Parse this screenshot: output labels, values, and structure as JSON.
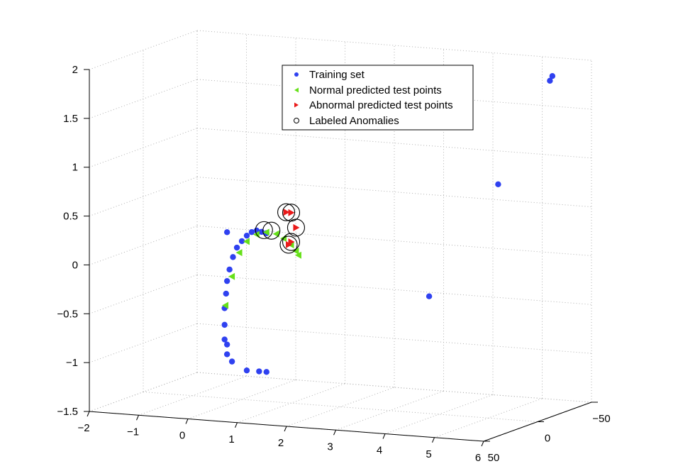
{
  "chart_data": {
    "type": "scatter3d",
    "title": "",
    "xlabel": "",
    "ylabel": "",
    "zlabel": "",
    "x_ticks": [
      "−2",
      "−1",
      "0",
      "1",
      "2",
      "3",
      "4",
      "5",
      "6"
    ],
    "y_ticks": [
      "50",
      "0",
      "−50"
    ],
    "z_ticks": [
      "−1.5",
      "−1",
      "−0.5",
      "0",
      "0.5",
      "1",
      "1.5",
      "2"
    ],
    "xlim": [
      -2,
      6
    ],
    "ylim": [
      50,
      -50
    ],
    "zlim": [
      -1.5,
      2
    ],
    "grid": true,
    "legend_position": "top-center",
    "colors": {
      "training": "#2f41f0",
      "normal": "#66e019",
      "abnormal": "#ea1a1a",
      "anomaly": "#000000"
    },
    "legend": [
      {
        "label": "Training set",
        "marker": "dot"
      },
      {
        "label": "Normal predicted test points",
        "marker": "triangle-left"
      },
      {
        "label": "Abnormal predicted test points",
        "marker": "triangle-right"
      },
      {
        "label": "Labeled Anomalies",
        "marker": "circle-open"
      }
    ],
    "series": [
      {
        "name": "Training set",
        "points": [
          [
            -0.35,
            0,
            -0.58
          ],
          [
            -0.32,
            0,
            -0.43
          ],
          [
            -0.3,
            0,
            -0.3
          ],
          [
            -0.25,
            0,
            -0.18
          ],
          [
            -0.18,
            0,
            -0.05
          ],
          [
            -0.1,
            0,
            0.05
          ],
          [
            0.0,
            0,
            0.12
          ],
          [
            0.1,
            0,
            0.18
          ],
          [
            0.2,
            0,
            0.22
          ],
          [
            0.3,
            0,
            0.24
          ],
          [
            0.4,
            0,
            0.23
          ],
          [
            0.5,
            0,
            0.22
          ],
          [
            -0.35,
            0,
            -0.75
          ],
          [
            -0.35,
            0,
            -0.9
          ],
          [
            -0.3,
            0,
            -0.95
          ],
          [
            -0.3,
            0,
            -1.05
          ],
          [
            -0.2,
            0,
            -1.12
          ],
          [
            0.1,
            0,
            -1.2
          ],
          [
            0.35,
            0,
            -1.2
          ],
          [
            0.5,
            0,
            -1.2
          ],
          [
            -0.3,
            0,
            0.2
          ],
          [
            3.8,
            0,
            -0.3
          ],
          [
            5.2,
            0,
            0.9
          ],
          [
            6.25,
            0,
            2.0
          ],
          [
            6.3,
            0,
            2.05
          ]
        ]
      },
      {
        "name": "Normal predicted test points",
        "points": [
          [
            -0.33,
            0,
            -0.55
          ],
          [
            -0.2,
            0,
            -0.25
          ],
          [
            -0.05,
            0,
            0.0
          ],
          [
            0.1,
            0,
            0.12
          ],
          [
            0.3,
            0,
            0.2
          ],
          [
            0.5,
            0,
            0.23
          ],
          [
            0.7,
            0,
            0.22
          ],
          [
            0.85,
            0,
            0.18
          ],
          [
            1.0,
            0,
            0.12
          ],
          [
            1.1,
            0,
            0.06
          ],
          [
            1.15,
            0,
            0.02
          ]
        ]
      },
      {
        "name": "Abnormal predicted test points",
        "points": [
          [
            0.9,
            0,
            0.45
          ],
          [
            1.0,
            0,
            0.45
          ],
          [
            1.1,
            0,
            0.3
          ],
          [
            0.95,
            0,
            0.12
          ],
          [
            1.0,
            0,
            0.15
          ]
        ]
      },
      {
        "name": "Labeled Anomalies",
        "points": [
          [
            0.45,
            0,
            0.25
          ],
          [
            0.6,
            0,
            0.25
          ],
          [
            0.9,
            0,
            0.45
          ],
          [
            1.0,
            0,
            0.45
          ],
          [
            1.1,
            0,
            0.3
          ],
          [
            0.95,
            0,
            0.12
          ],
          [
            1.0,
            0,
            0.15
          ]
        ]
      }
    ]
  }
}
